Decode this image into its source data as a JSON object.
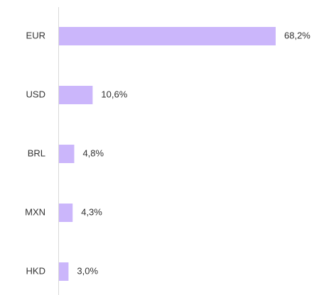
{
  "chart_data": {
    "type": "bar",
    "orientation": "horizontal",
    "categories": [
      "EUR",
      "USD",
      "BRL",
      "MXN",
      "HKD"
    ],
    "values": [
      68.2,
      10.6,
      4.8,
      4.3,
      3.0
    ],
    "value_labels": [
      "68,2%",
      "10,6%",
      "4,8%",
      "4,3%",
      "3,0%"
    ],
    "color": "#cbb6fb"
  }
}
